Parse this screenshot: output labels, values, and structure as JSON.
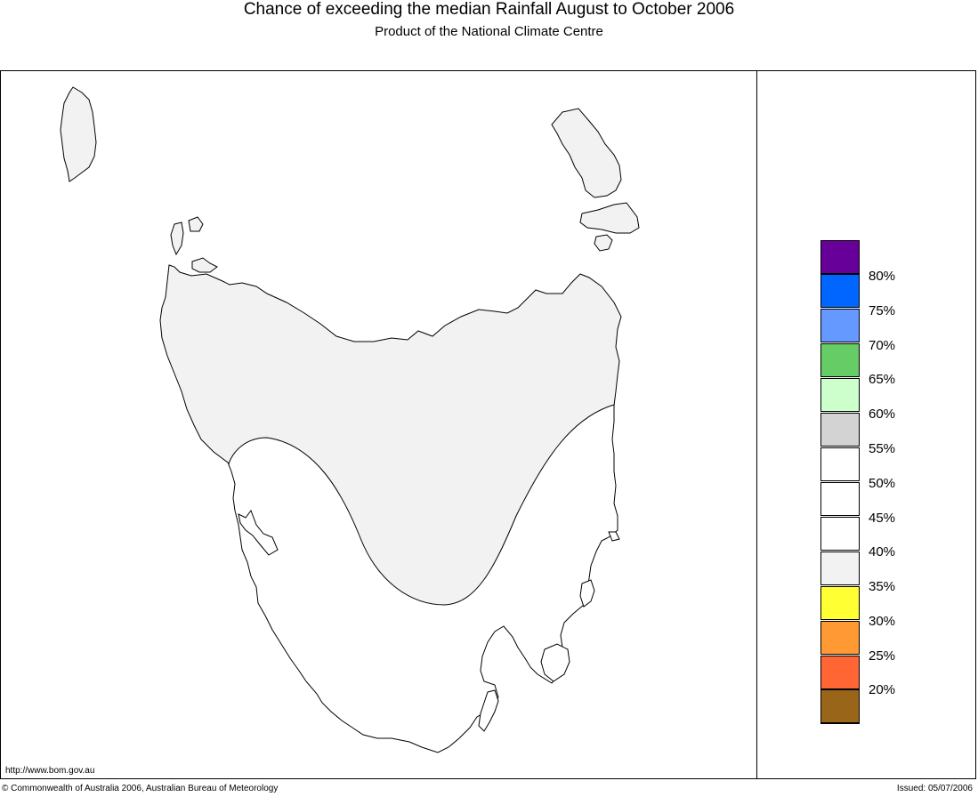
{
  "header": {
    "title": "Chance of exceeding the median Rainfall August to October 2006",
    "subtitle": "Product of the National Climate Centre"
  },
  "legend": {
    "swatches": [
      {
        "color": "#660099"
      },
      {
        "color": "#0066ff"
      },
      {
        "color": "#6699ff"
      },
      {
        "color": "#66cc66"
      },
      {
        "color": "#ccffcc"
      },
      {
        "color": "#d3d3d3"
      },
      {
        "color": "#ffffff"
      },
      {
        "color": "#ffffff"
      },
      {
        "color": "#ffffff"
      },
      {
        "color": "#f2f2f2"
      },
      {
        "color": "#ffff33"
      },
      {
        "color": "#ff9933"
      },
      {
        "color": "#ff6633"
      },
      {
        "color": "#ff0000"
      },
      {
        "color": "#996619"
      }
    ],
    "labels": [
      "80%",
      "75%",
      "70%",
      "65%",
      "60%",
      "55%",
      "50%",
      "45%",
      "40%",
      "35%",
      "30%",
      "25%",
      "20%"
    ]
  },
  "map": {
    "region_fill_40_45": "#f2f2f2",
    "region_fill_45_50": "#ffffff",
    "outline_color": "#000000"
  },
  "footer": {
    "url": "http://www.bom.gov.au",
    "copyright": "© Commonwealth of Australia 2006, Australian Bureau of Meteorology",
    "issued": "Issued: 05/07/2006"
  }
}
